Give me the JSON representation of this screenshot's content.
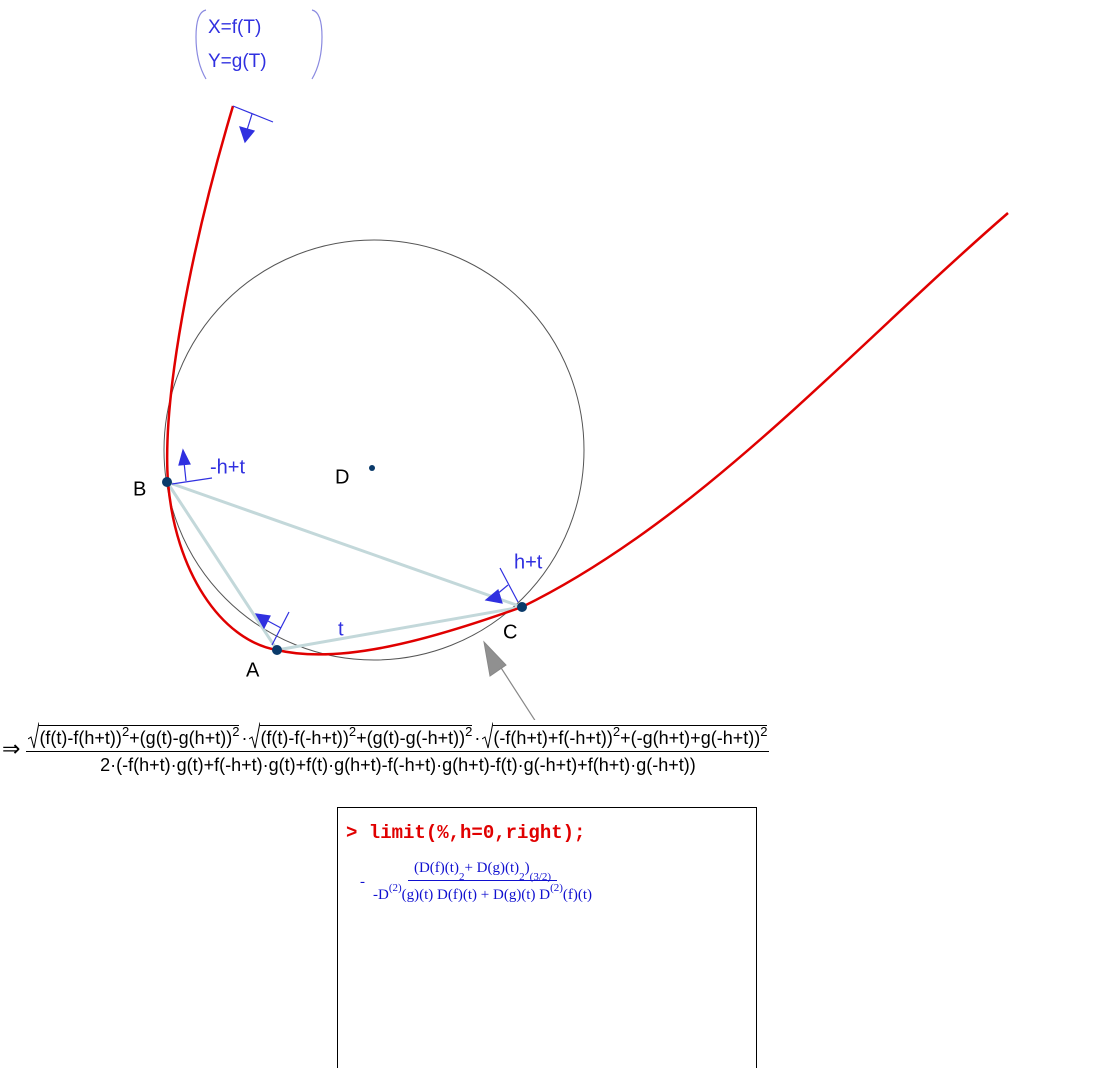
{
  "diagram": {
    "param": [
      "X=f(T)",
      "Y=g(T)"
    ],
    "points": {
      "A": "A",
      "B": "B",
      "C": "C",
      "D": "D"
    },
    "angle_labels": {
      "minus": "-h+t",
      "zero": "t",
      "plus": "h+t"
    }
  },
  "formula": {
    "arrow": "⇒",
    "dot": "·",
    "radicals": [
      [
        {
          "text": "(f(t)-f(h+t))"
        },
        {
          "sup": "2"
        },
        {
          "text": "+(g(t)-g(h+t))"
        },
        {
          "sup": "2"
        }
      ],
      [
        {
          "text": "(f(t)-f(-h+t))"
        },
        {
          "sup": "2"
        },
        {
          "text": "+(g(t)-g(-h+t))"
        },
        {
          "sup": "2"
        }
      ],
      [
        {
          "text": "(-f(h+t)+f(-h+t))"
        },
        {
          "sup": "2"
        },
        {
          "text": "+(-g(h+t)+g(-h+t))"
        },
        {
          "sup": "2"
        }
      ]
    ],
    "denominator": "2·(-f(h+t)·g(t)+f(-h+t)·g(t)+f(t)·g(h+t)-f(-h+t)·g(h+t)-f(t)·g(-h+t)+f(h+t)·g(-h+t))"
  },
  "maple": {
    "prompt": "> limit(%,h=0,right);",
    "minus": "-",
    "numerator": [
      {
        "text": "(D(f)(t)"
      },
      {
        "sup": "2"
      },
      {
        "text": " + D(g)(t)"
      },
      {
        "sup": "2"
      },
      {
        "text": ")"
      },
      {
        "sup": "(3/2)"
      }
    ],
    "denominator": [
      {
        "text": "-D"
      },
      {
        "sup": "(2)"
      },
      {
        "text": "(g)(t) D(f)(t) + D(g)(t) D"
      },
      {
        "sup": "(2)"
      },
      {
        "text": "(f)(t)"
      }
    ]
  }
}
